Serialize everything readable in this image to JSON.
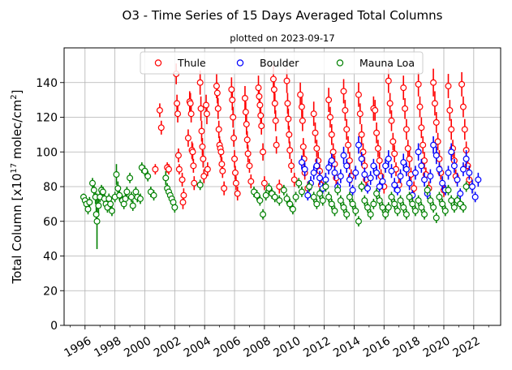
{
  "chart_data": {
    "type": "scatter",
    "title": "O3 - Time Series of 15 Days Averaged Total Columns",
    "subtitle": "plotted on 2023-09-17",
    "xlabel": "",
    "ylabel": "Total Column [x10^17 molec/cm^2]",
    "ylabel_parts": {
      "main": "Total Column [x10",
      "exp1": "17",
      "mid": " molec/cm",
      "exp2": "2",
      "end": "]"
    },
    "xlim": [
      1994.6,
      2023.8
    ],
    "ylim": [
      0,
      160
    ],
    "x_ticks": [
      1996,
      1998,
      2000,
      2002,
      2004,
      2006,
      2008,
      2010,
      2012,
      2014,
      2016,
      2018,
      2020,
      2022
    ],
    "x_tick_labels": [
      "1996",
      "1998",
      "2000",
      "2002",
      "2004",
      "2006",
      "2008",
      "2010",
      "2012",
      "2014",
      "2016",
      "2018",
      "2020",
      "2022"
    ],
    "y_ticks": [
      0,
      20,
      40,
      60,
      80,
      100,
      120,
      140
    ],
    "y_tick_labels": [
      "0",
      "20",
      "40",
      "60",
      "80",
      "100",
      "120",
      "140"
    ],
    "grid": true,
    "legend_position": "top-center",
    "marker": "open-circle-with-errorbar",
    "series": [
      {
        "name": "Thule",
        "color": "#ff0000",
        "x": [
          2000.7,
          2001.0,
          2001.1,
          2001.5,
          2001.6,
          2002.1,
          2002.15,
          2002.2,
          2002.25,
          2002.3,
          2002.5,
          2002.55,
          2002.6,
          2002.9,
          2003.0,
          2003.05,
          2003.1,
          2003.15,
          2003.2,
          2003.25,
          2003.3,
          2003.7,
          2003.75,
          2003.8,
          2003.85,
          2003.9,
          2003.95,
          2004.1,
          2004.15,
          2004.2,
          2004.8,
          2004.85,
          2004.9,
          2004.95,
          2005.0,
          2005.05,
          2005.1,
          2005.15,
          2005.2,
          2005.3,
          2005.8,
          2005.85,
          2005.9,
          2005.95,
          2006.0,
          2006.05,
          2006.1,
          2006.2,
          2006.7,
          2006.75,
          2006.8,
          2006.85,
          2006.9,
          2007.0,
          2007.1,
          2007.6,
          2007.65,
          2007.7,
          2007.75,
          2007.8,
          2007.9,
          2008.0,
          2008.6,
          2008.65,
          2008.7,
          2008.75,
          2008.8,
          2009.0,
          2009.5,
          2009.55,
          2009.6,
          2009.65,
          2009.7,
          2009.8,
          2010.0,
          2010.4,
          2010.5,
          2010.55,
          2010.6,
          2010.65,
          2010.7,
          2010.9,
          2011.3,
          2011.4,
          2011.5,
          2011.6,
          2011.7,
          2011.8,
          2012.3,
          2012.4,
          2012.5,
          2012.6,
          2012.7,
          2012.8,
          2013.3,
          2013.4,
          2013.5,
          2013.6,
          2013.7,
          2013.8,
          2014.3,
          2014.4,
          2014.5,
          2014.6,
          2014.7,
          2014.8,
          2015.3,
          2015.4,
          2015.5,
          2015.6,
          2015.7,
          2015.8,
          2016.0,
          2016.3,
          2016.4,
          2016.5,
          2016.6,
          2016.7,
          2016.8,
          2017.0,
          2017.3,
          2017.4,
          2017.5,
          2017.6,
          2017.7,
          2017.8,
          2018.0,
          2018.3,
          2018.4,
          2018.5,
          2018.6,
          2018.7,
          2018.8,
          2019.0,
          2019.3,
          2019.4,
          2019.5,
          2019.6,
          2019.7,
          2019.8,
          2020.0,
          2020.3,
          2020.4,
          2020.5,
          2020.6,
          2020.7,
          2020.8,
          2021.2,
          2021.3,
          2021.4,
          2021.5,
          2021.6,
          2021.7
        ],
        "y": [
          90,
          124,
          114,
          91,
          90,
          145,
          128,
          122,
          98,
          90,
          84,
          71,
          75,
          108,
          129,
          128,
          122,
          101,
          100,
          92,
          82,
          140,
          125,
          112,
          103,
          96,
          86,
          127,
          122,
          90,
          138,
          134,
          125,
          113,
          104,
          102,
          100,
          93,
          89,
          79,
          136,
          130,
          120,
          108,
          96,
          88,
          82,
          76,
          131,
          123,
          116,
          107,
          99,
          92,
          83,
          137,
          132,
          127,
          121,
          115,
          100,
          82,
          142,
          136,
          128,
          118,
          104,
          80,
          141,
          128,
          119,
          110,
          101,
          92,
          84,
          133,
          126,
          118,
          103,
          96,
          88,
          79,
          122,
          111,
          102,
          95,
          89,
          81,
          130,
          120,
          110,
          100,
          93,
          85,
          135,
          124,
          113,
          104,
          95,
          86,
          133,
          122,
          110,
          100,
          92,
          84,
          125,
          124,
          111,
          102,
          95,
          86,
          80,
          141,
          128,
          118,
          106,
          99,
          90,
          81,
          137,
          125,
          113,
          102,
          96,
          87,
          79,
          139,
          126,
          114,
          104,
          95,
          87,
          79,
          140,
          128,
          117,
          106,
          96,
          88,
          78,
          138,
          124,
          113,
          102,
          95,
          86,
          139,
          126,
          113,
          101,
          92,
          84
        ],
        "err": [
          3,
          4,
          4,
          3,
          3,
          6,
          5,
          5,
          4,
          3,
          4,
          4,
          4,
          5,
          6,
          6,
          5,
          5,
          5,
          4,
          4,
          7,
          7,
          6,
          5,
          5,
          4,
          6,
          6,
          4,
          7,
          6,
          6,
          5,
          5,
          5,
          5,
          4,
          4,
          4,
          7,
          6,
          6,
          5,
          5,
          4,
          4,
          4,
          7,
          6,
          6,
          5,
          5,
          4,
          4,
          7,
          6,
          6,
          5,
          5,
          5,
          4,
          8,
          7,
          6,
          6,
          5,
          4,
          7,
          6,
          6,
          5,
          5,
          4,
          4,
          7,
          6,
          6,
          5,
          5,
          4,
          4,
          7,
          6,
          5,
          5,
          4,
          4,
          7,
          6,
          6,
          5,
          5,
          4,
          7,
          6,
          6,
          5,
          5,
          4,
          7,
          6,
          6,
          5,
          5,
          4,
          7,
          6,
          6,
          5,
          5,
          4,
          4,
          7,
          6,
          6,
          5,
          5,
          4,
          4,
          7,
          6,
          6,
          5,
          5,
          4,
          4,
          7,
          6,
          6,
          5,
          5,
          4,
          4,
          8,
          7,
          6,
          5,
          5,
          4,
          4,
          7,
          6,
          6,
          5,
          5,
          4,
          7,
          6,
          6,
          5,
          5,
          4
        ]
      },
      {
        "name": "Boulder",
        "color": "#0000ff",
        "x": [
          2010.5,
          2010.7,
          2010.9,
          2011.1,
          2011.3,
          2011.5,
          2011.7,
          2011.9,
          2012.1,
          2012.3,
          2012.5,
          2012.7,
          2012.9,
          2013.1,
          2013.3,
          2013.5,
          2013.7,
          2013.9,
          2014.1,
          2014.3,
          2014.5,
          2014.7,
          2014.9,
          2015.1,
          2015.3,
          2015.5,
          2015.7,
          2015.9,
          2016.1,
          2016.3,
          2016.5,
          2016.7,
          2016.9,
          2017.1,
          2017.3,
          2017.5,
          2017.7,
          2017.9,
          2018.1,
          2018.3,
          2018.5,
          2018.7,
          2018.9,
          2019.1,
          2019.3,
          2019.5,
          2019.7,
          2019.9,
          2020.1,
          2020.3,
          2020.5,
          2020.7,
          2020.9,
          2021.1,
          2021.3,
          2021.5,
          2021.7,
          2021.9,
          2022.1,
          2022.3
        ],
        "y": [
          94,
          90,
          75,
          82,
          88,
          92,
          85,
          79,
          84,
          91,
          95,
          88,
          80,
          86,
          98,
          92,
          84,
          78,
          88,
          104,
          96,
          87,
          79,
          85,
          92,
          88,
          80,
          83,
          92,
          96,
          89,
          81,
          78,
          86,
          94,
          90,
          82,
          75,
          88,
          100,
          92,
          84,
          76,
          86,
          104,
          98,
          90,
          82,
          78,
          88,
          100,
          92,
          84,
          76,
          90,
          96,
          88,
          80,
          74,
          84
        ],
        "err": [
          4,
          4,
          3,
          4,
          4,
          4,
          4,
          3,
          4,
          4,
          4,
          4,
          3,
          4,
          5,
          4,
          4,
          3,
          4,
          5,
          4,
          4,
          3,
          4,
          4,
          4,
          3,
          4,
          4,
          5,
          4,
          4,
          3,
          4,
          5,
          4,
          4,
          3,
          4,
          5,
          4,
          4,
          3,
          4,
          5,
          5,
          4,
          4,
          3,
          4,
          5,
          4,
          4,
          3,
          4,
          5,
          4,
          4,
          3,
          4
        ]
      },
      {
        "name": "Mauna Loa",
        "color": "#008000",
        "x": [
          1995.9,
          1996.0,
          1996.1,
          1996.2,
          1996.3,
          1996.5,
          1996.6,
          1996.7,
          1996.75,
          1996.8,
          1996.9,
          1997.0,
          1997.1,
          1997.2,
          1997.3,
          1997.4,
          1997.5,
          1997.6,
          1997.7,
          1997.8,
          1998.0,
          1998.1,
          1998.2,
          1998.3,
          1998.5,
          1998.6,
          1998.7,
          1998.8,
          1999.0,
          1999.1,
          1999.2,
          1999.4,
          1999.5,
          1999.7,
          1999.8,
          2000.0,
          2000.2,
          2000.4,
          2000.6,
          2001.4,
          2001.5,
          2001.6,
          2001.7,
          2001.8,
          2001.9,
          2002.0,
          2003.7,
          2007.3,
          2007.5,
          2007.7,
          2007.9,
          2008.1,
          2008.3,
          2008.5,
          2008.7,
          2009.0,
          2009.3,
          2009.5,
          2009.7,
          2009.9,
          2010.1,
          2010.3,
          2010.5,
          2011.0,
          2011.3,
          2011.5,
          2011.7,
          2011.9,
          2012.1,
          2012.3,
          2012.5,
          2012.7,
          2012.9,
          2013.1,
          2013.3,
          2013.5,
          2013.7,
          2013.9,
          2014.1,
          2014.3,
          2014.5,
          2014.7,
          2014.9,
          2015.1,
          2015.3,
          2015.5,
          2015.7,
          2015.9,
          2016.1,
          2016.3,
          2016.5,
          2016.7,
          2016.9,
          2017.1,
          2017.3,
          2017.5,
          2017.7,
          2017.9,
          2018.1,
          2018.3,
          2018.5,
          2018.7,
          2018.9,
          2019.1,
          2019.3,
          2019.5,
          2019.7,
          2019.9,
          2020.1,
          2020.3,
          2020.5,
          2020.7,
          2020.9,
          2021.1,
          2021.3,
          2021.5
        ],
        "y": [
          74,
          72,
          70,
          67,
          71,
          82,
          78,
          74,
          64,
          60,
          69,
          74,
          78,
          77,
          73,
          70,
          68,
          73,
          70,
          66,
          74,
          87,
          79,
          75,
          72,
          70,
          73,
          77,
          85,
          74,
          69,
          77,
          74,
          73,
          91,
          89,
          86,
          77,
          75,
          85,
          79,
          77,
          75,
          73,
          71,
          68,
          81,
          77,
          75,
          72,
          64,
          75,
          79,
          76,
          74,
          72,
          78,
          73,
          70,
          67,
          74,
          82,
          77,
          80,
          74,
          70,
          76,
          72,
          80,
          74,
          70,
          66,
          78,
          72,
          68,
          64,
          74,
          70,
          66,
          60,
          80,
          72,
          68,
          64,
          70,
          76,
          72,
          68,
          64,
          68,
          74,
          70,
          66,
          72,
          68,
          64,
          74,
          70,
          66,
          72,
          68,
          64,
          78,
          72,
          68,
          62,
          74,
          70,
          66,
          78,
          72,
          68,
          72,
          70,
          68,
          80
        ],
        "err": [
          2,
          2,
          2,
          3,
          3,
          3,
          3,
          4,
          4,
          16,
          5,
          3,
          3,
          3,
          3,
          3,
          3,
          3,
          3,
          3,
          3,
          6,
          4,
          3,
          3,
          3,
          3,
          3,
          3,
          3,
          3,
          3,
          3,
          3,
          3,
          3,
          3,
          3,
          3,
          4,
          3,
          3,
          3,
          3,
          3,
          3,
          3,
          3,
          3,
          3,
          3,
          3,
          3,
          3,
          3,
          3,
          3,
          3,
          3,
          3,
          3,
          3,
          3,
          3,
          3,
          3,
          3,
          3,
          3,
          3,
          3,
          3,
          3,
          3,
          3,
          3,
          3,
          3,
          3,
          3,
          3,
          3,
          3,
          3,
          3,
          3,
          3,
          3,
          3,
          3,
          3,
          3,
          3,
          3,
          3,
          3,
          3,
          3,
          3,
          3,
          3,
          3,
          3,
          3,
          3,
          3,
          3,
          3,
          3,
          3,
          3,
          3,
          3,
          3,
          3,
          3
        ]
      }
    ]
  }
}
